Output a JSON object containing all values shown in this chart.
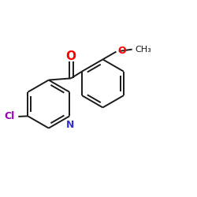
{
  "background_color": "#ffffff",
  "bond_color": "#1a1a1a",
  "O_color": "#ff0000",
  "N_color": "#3333cc",
  "Cl_color": "#9900bb",
  "label_O": "O",
  "label_N": "N",
  "label_Cl": "Cl",
  "label_OMe": "O",
  "label_Me": "CH₃",
  "figsize": [
    2.5,
    2.5
  ],
  "dpi": 100
}
